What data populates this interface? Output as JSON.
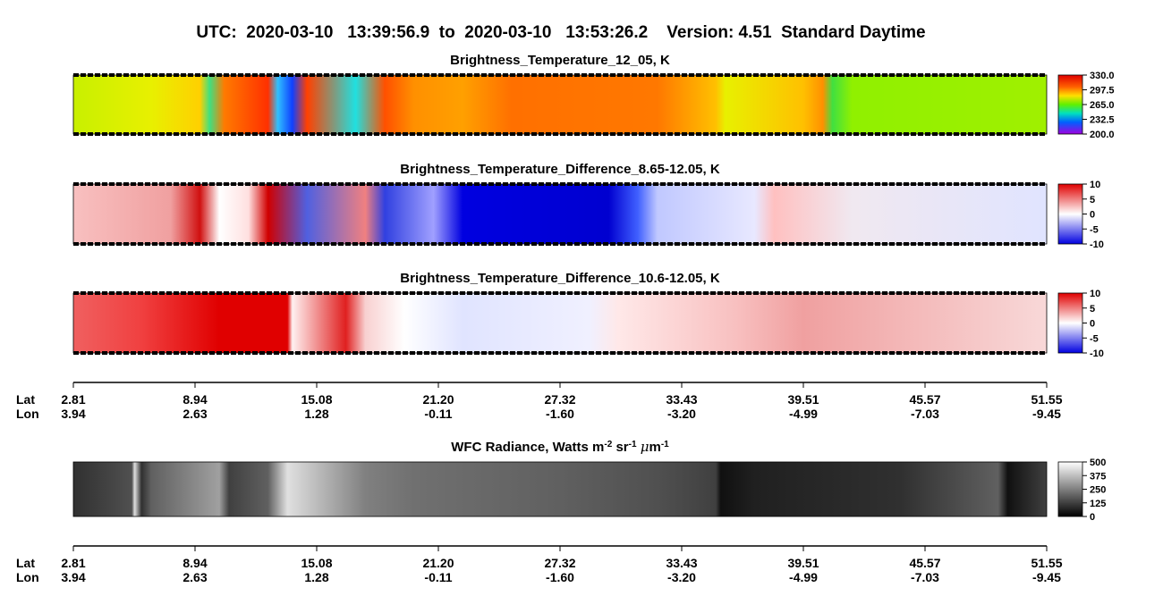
{
  "header": {
    "title": "UTC:  2020-03-10   13:39:56.9  to  2020-03-10   13:53:26.2    Version: 4.51  Standard Daytime"
  },
  "panels": [
    {
      "title": "Brightness_Temperature_12_05, K",
      "colorbar_ticks": [
        "330.0",
        "297.5",
        "265.0",
        "232.5",
        "200.0"
      ]
    },
    {
      "title": "Brightness_Temperature_Difference_8.65-12.05, K",
      "colorbar_ticks": [
        "10",
        "5",
        "0",
        "-5",
        "-10"
      ]
    },
    {
      "title": "Brightness_Temperature_Difference_10.6-12.05, K",
      "colorbar_ticks": [
        "10",
        "5",
        "0",
        "-5",
        "-10"
      ]
    },
    {
      "title_parts": [
        "WFC Radiance, Watts m",
        "-2",
        " sr",
        "-1",
        " ",
        "μ",
        "m",
        "-1"
      ],
      "colorbar_ticks": [
        "500",
        "375",
        "250",
        "125",
        "0"
      ]
    }
  ],
  "axes": [
    {
      "lat_label": "Lat",
      "lon_label": "Lon",
      "lat": [
        "2.81",
        "8.94",
        "15.08",
        "21.20",
        "27.32",
        "33.43",
        "39.51",
        "45.57",
        "51.55"
      ],
      "lon": [
        "3.94",
        "2.63",
        "1.28",
        "-0.11",
        "-1.60",
        "-3.20",
        "-4.99",
        "-7.03",
        "-9.45"
      ]
    },
    {
      "lat_label": "Lat",
      "lon_label": "Lon",
      "lat": [
        "2.81",
        "8.94",
        "15.08",
        "21.20",
        "27.32",
        "33.43",
        "39.51",
        "45.57",
        "51.55"
      ],
      "lon": [
        "3.94",
        "2.63",
        "1.28",
        "-0.11",
        "-1.60",
        "-3.20",
        "-4.99",
        "-7.03",
        "-9.45"
      ]
    }
  ]
}
